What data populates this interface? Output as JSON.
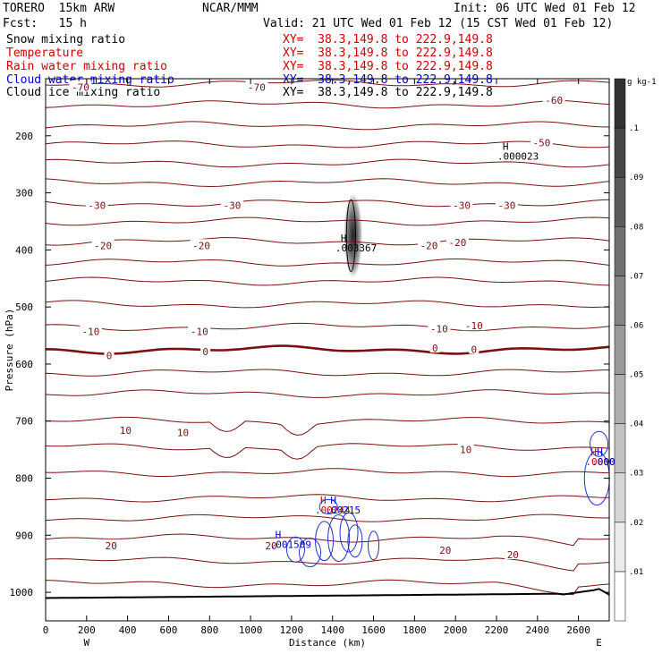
{
  "header": {
    "model": "TORERO  15km ARW",
    "center": "NCAR/MMM",
    "init": "Init: 06 UTC Wed 01 Feb 12",
    "fcst": "Fcst:   15 h",
    "valid": "Valid: 21 UTC Wed 01 Feb 12 (15 CST Wed 01 Feb 12)"
  },
  "fields": [
    {
      "name": "Snow mixing ratio",
      "xy": "XY=  38.3,149.8 to 222.9,149.8",
      "color": "#000000"
    },
    {
      "name": "Temperature",
      "xy": "XY=  38.3,149.8 to 222.9,149.8",
      "color": "#cc0000"
    },
    {
      "name": "Rain water mixing ratio",
      "xy": "XY=  38.3,149.8 to 222.9,149.8",
      "color": "#cc0000"
    },
    {
      "name": "Cloud water mixing ratio",
      "xy": "XY=  38.3,149.8 to 222.9,149.8",
      "color": "#0000cc"
    },
    {
      "name": "Cloud ice mixing ratio",
      "xy": "XY=  38.3,149.8 to 222.9,149.8",
      "color": "#000000"
    }
  ],
  "chart_data": {
    "type": "contour cross-section",
    "xlabel": "Distance (km)",
    "ylabel": "Pressure (hPa)",
    "xlim": [
      0,
      2750
    ],
    "ylim": [
      1050,
      100
    ],
    "x_ticks": [
      0,
      200,
      400,
      600,
      800,
      1000,
      1200,
      1400,
      1600,
      1800,
      2000,
      2200,
      2400,
      2600
    ],
    "y_ticks": [
      200,
      300,
      400,
      500,
      600,
      700,
      800,
      900,
      1000
    ],
    "x_ends": {
      "left": "W",
      "right": "E"
    },
    "colorbar": {
      "unit": "g kg-1",
      "ticks": [
        ".01",
        ".02",
        ".03",
        ".04",
        ".05",
        ".06",
        ".07",
        ".08",
        ".09",
        ".1"
      ]
    },
    "temperature_contour_labels": [
      {
        "label": "-70",
        "x": 170,
        "p": 115
      },
      {
        "label": "-70",
        "x": 1030,
        "p": 115
      },
      {
        "label": "-60",
        "x": 2480,
        "p": 138
      },
      {
        "label": "-50",
        "x": 2420,
        "p": 212
      },
      {
        "label": "-30",
        "x": 250,
        "p": 322
      },
      {
        "label": "-30",
        "x": 910,
        "p": 322
      },
      {
        "label": "-30",
        "x": 2030,
        "p": 322
      },
      {
        "label": "-30",
        "x": 2250,
        "p": 322
      },
      {
        "label": "-20",
        "x": 280,
        "p": 392
      },
      {
        "label": "-20",
        "x": 760,
        "p": 392
      },
      {
        "label": "-20",
        "x": 1870,
        "p": 392
      },
      {
        "label": "-20",
        "x": 2010,
        "p": 387
      },
      {
        "label": "-10",
        "x": 220,
        "p": 543
      },
      {
        "label": "-10",
        "x": 750,
        "p": 543
      },
      {
        "label": "-10",
        "x": 1920,
        "p": 538
      },
      {
        "label": "-10",
        "x": 2090,
        "p": 533
      },
      {
        "label": "0",
        "x": 310,
        "p": 585
      },
      {
        "label": "0",
        "x": 780,
        "p": 578
      },
      {
        "label": "0",
        "x": 1900,
        "p": 572
      },
      {
        "label": "0",
        "x": 2090,
        "p": 574
      },
      {
        "label": "10",
        "x": 390,
        "p": 716
      },
      {
        "label": "10",
        "x": 670,
        "p": 720
      },
      {
        "label": "10",
        "x": 2050,
        "p": 750
      },
      {
        "label": "20",
        "x": 320,
        "p": 918
      },
      {
        "label": "20",
        "x": 1100,
        "p": 918
      },
      {
        "label": "20",
        "x": 1950,
        "p": 926
      },
      {
        "label": "20",
        "x": 2280,
        "p": 934
      }
    ],
    "extrema": [
      {
        "mark": "H",
        "value": ".000023",
        "x": 2230,
        "p": 225,
        "color": "#000000"
      },
      {
        "mark": "H",
        "value": ".003367",
        "x": 1440,
        "p": 385,
        "color": "#000000"
      },
      {
        "mark": "H",
        "value": ".00244",
        "x": 1340,
        "p": 845,
        "color": "#cc0000"
      },
      {
        "mark": "H",
        "value": ".00215",
        "x": 1390,
        "p": 845,
        "color": "#0000cc"
      },
      {
        "mark": "H",
        "value": ".001509",
        "x": 1120,
        "p": 905,
        "color": "#0000cc"
      },
      {
        "mark": "H",
        "value": ".0000",
        "x": 2660,
        "p": 760,
        "color": "#cc0000"
      },
      {
        "mark": "H",
        "value": ".0000",
        "x": 2690,
        "p": 760,
        "color": "#0000cc"
      }
    ]
  }
}
